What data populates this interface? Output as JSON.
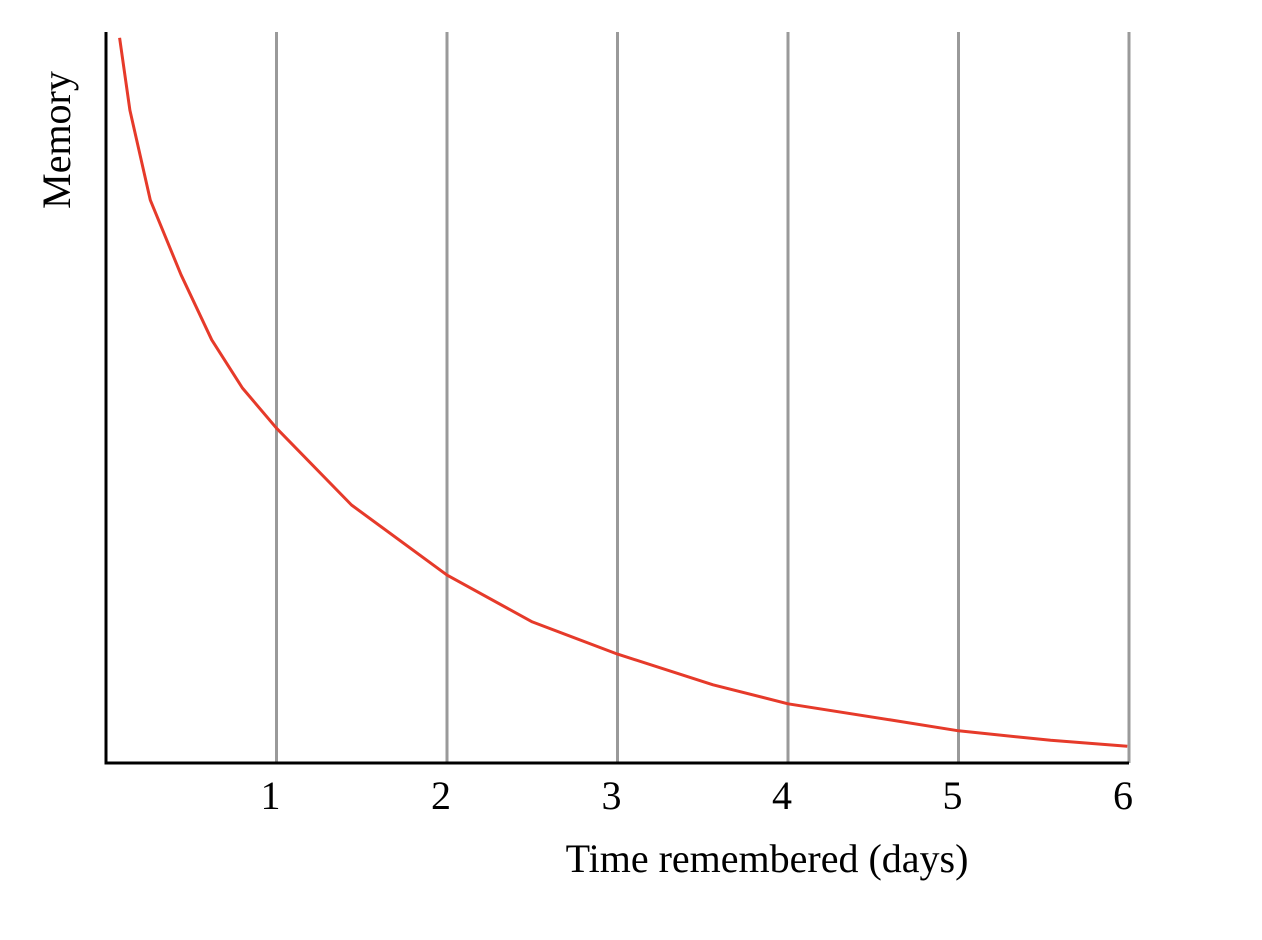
{
  "chart_data": {
    "type": "line",
    "x_label": "Time remembered (days)",
    "y_label": "Memory",
    "x": [
      0.08,
      0.14,
      0.26,
      0.44,
      0.62,
      0.8,
      1,
      1.44,
      2,
      2.5,
      3,
      3.56,
      4,
      4.6,
      5,
      5.54,
      5.99
    ],
    "values": [
      99.2,
      89.3,
      77,
      66.8,
      57.9,
      51.3,
      45.8,
      35.3,
      25.7,
      19.3,
      14.9,
      10.7,
      8.1,
      5.9,
      4.4,
      3.1,
      2.3
    ],
    "color": "#e63a2a",
    "xlim": [
      0,
      6
    ],
    "xticks": [
      1,
      2,
      3,
      4,
      5,
      6
    ],
    "ylim": [
      0,
      100
    ],
    "grid": true,
    "grid_color": "#9a9a9a"
  }
}
